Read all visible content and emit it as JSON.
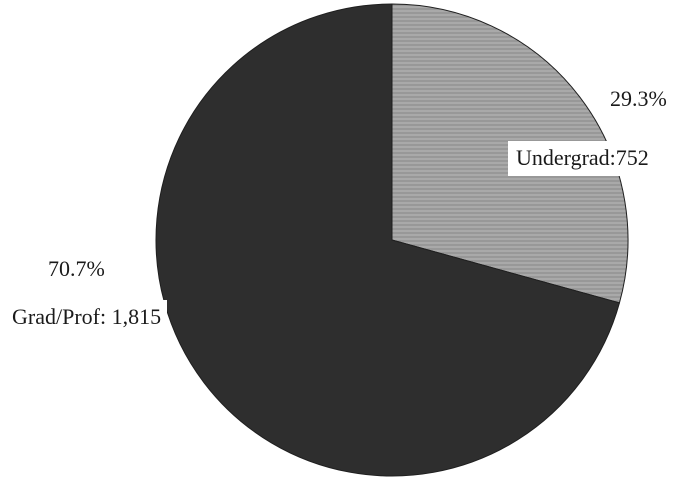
{
  "chart_data": {
    "type": "pie",
    "slices": [
      {
        "label": "Undergrad",
        "value": 752,
        "value_text": "752",
        "percent_text": "29.3%",
        "color": "#9e9e9e"
      },
      {
        "label": "Grad/Prof",
        "value": 1815,
        "value_text": "1,815",
        "percent_text": "70.7%",
        "color": "#2e2e2e"
      }
    ],
    "labels": {
      "undergrad": {
        "percent": "29.3%",
        "text": "Undergrad:752"
      },
      "grad": {
        "percent": "70.7%",
        "text": "Grad/Prof: 1,815"
      }
    },
    "start_angle": "12 o'clock",
    "direction": "clockwise",
    "legend": "none"
  }
}
